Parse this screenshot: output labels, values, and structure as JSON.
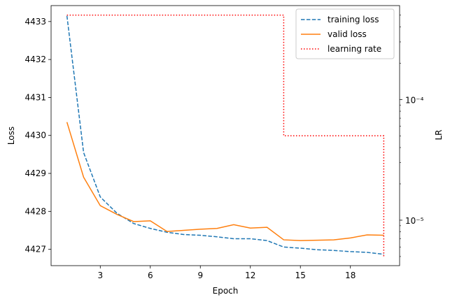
{
  "chart_data": {
    "type": "line",
    "title": "",
    "xlabel": "Epoch",
    "ylabel": "Loss",
    "y2label": "LR",
    "x": [
      1,
      2,
      3,
      4,
      5,
      6,
      7,
      8,
      9,
      10,
      11,
      12,
      13,
      14,
      15,
      16,
      17,
      18,
      19,
      20
    ],
    "xticks": [
      3,
      6,
      9,
      12,
      15,
      18
    ],
    "xlim": [
      0.05,
      20.95
    ],
    "ylim": [
      4426.57,
      4433.42
    ],
    "yticks": [
      4427,
      4428,
      4429,
      4430,
      4431,
      4432,
      4433
    ],
    "y2lim_log": [
      4.2e-06,
      0.0006
    ],
    "y2ticks": [
      {
        "value": 0.0001,
        "label": "10⁻⁴"
      },
      {
        "value": 1e-05,
        "label": "10⁻⁵"
      }
    ],
    "series": [
      {
        "name": "training loss",
        "axis": "left",
        "color": "#1f77b4",
        "style": "dashed",
        "values": [
          4433.15,
          4429.55,
          4428.38,
          4427.95,
          4427.68,
          4427.55,
          4427.45,
          4427.39,
          4427.37,
          4427.33,
          4427.28,
          4427.28,
          4427.23,
          4427.06,
          4427.03,
          4426.99,
          4426.97,
          4426.94,
          4426.92,
          4426.87
        ]
      },
      {
        "name": "valid loss",
        "axis": "left",
        "color": "#ff7f0e",
        "style": "solid",
        "values": [
          4430.35,
          4428.9,
          4428.15,
          4427.92,
          4427.73,
          4427.75,
          4427.47,
          4427.5,
          4427.53,
          4427.55,
          4427.65,
          4427.56,
          4427.58,
          4427.25,
          4427.23,
          4427.24,
          4427.25,
          4427.3,
          4427.38,
          4427.37
        ]
      },
      {
        "name": "learning rate",
        "axis": "right",
        "color": "#ff0000",
        "style": "dotted",
        "values": [
          0.0005,
          0.0005,
          0.0005,
          0.0005,
          0.0005,
          0.0005,
          0.0005,
          0.0005,
          0.0005,
          0.0005,
          0.0005,
          0.0005,
          0.0005,
          5e-05,
          5e-05,
          5e-05,
          5e-05,
          5e-05,
          5e-05,
          5e-06
        ]
      }
    ],
    "legend_position": "top-right"
  }
}
